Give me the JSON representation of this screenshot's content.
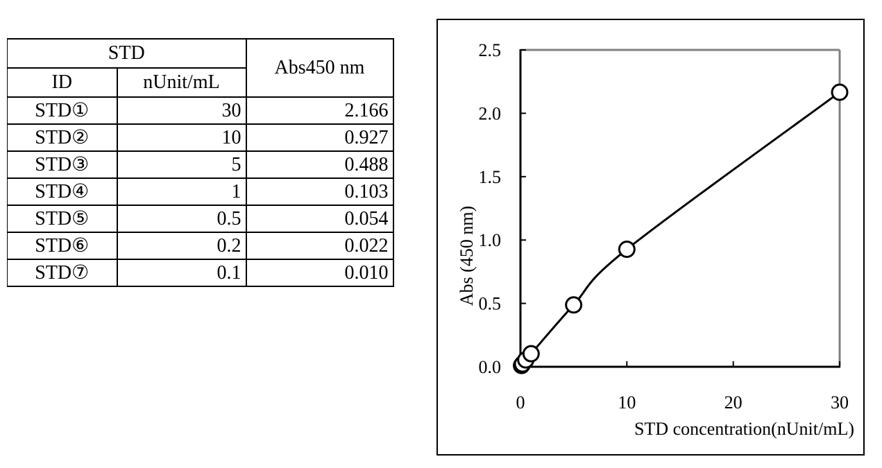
{
  "table": {
    "header": {
      "group_label": "STD",
      "id_label": "ID",
      "conc_label": "nUnit/mL",
      "abs_label": "Abs450 nm"
    },
    "rows": [
      {
        "id": "STD①",
        "conc": "30",
        "abs": "2.166"
      },
      {
        "id": "STD②",
        "conc": "10",
        "abs": "0.927"
      },
      {
        "id": "STD③",
        "conc": "5",
        "abs": "0.488"
      },
      {
        "id": "STD④",
        "conc": "1",
        "abs": "0.103"
      },
      {
        "id": "STD⑤",
        "conc": "0.5",
        "abs": "0.054"
      },
      {
        "id": "STD⑥",
        "conc": "0.2",
        "abs": "0.022"
      },
      {
        "id": "STD⑦",
        "conc": "0.1",
        "abs": "0.010"
      }
    ]
  },
  "chart_data": {
    "type": "line",
    "title": "",
    "xlabel": "STD concentration(nUnit/mL)",
    "ylabel": "Abs (450 nm)",
    "xlim": [
      0,
      30
    ],
    "ylim": [
      0,
      2.5
    ],
    "xticks": [
      0,
      10,
      20,
      30
    ],
    "yticks": [
      0.0,
      0.5,
      1.0,
      1.5,
      2.0,
      2.5
    ],
    "ytick_labels": [
      "0.0",
      "0.5",
      "1.0",
      "1.5",
      "2.0",
      "2.5"
    ],
    "xtick_labels": [
      "0",
      "10",
      "20",
      "30"
    ],
    "grid": false,
    "marker": "open-circle",
    "series": [
      {
        "x": [
          0.1,
          0.2,
          0.5,
          1,
          5,
          10,
          30
        ],
        "y": [
          0.01,
          0.022,
          0.054,
          0.103,
          0.488,
          0.927,
          2.166
        ]
      }
    ]
  }
}
